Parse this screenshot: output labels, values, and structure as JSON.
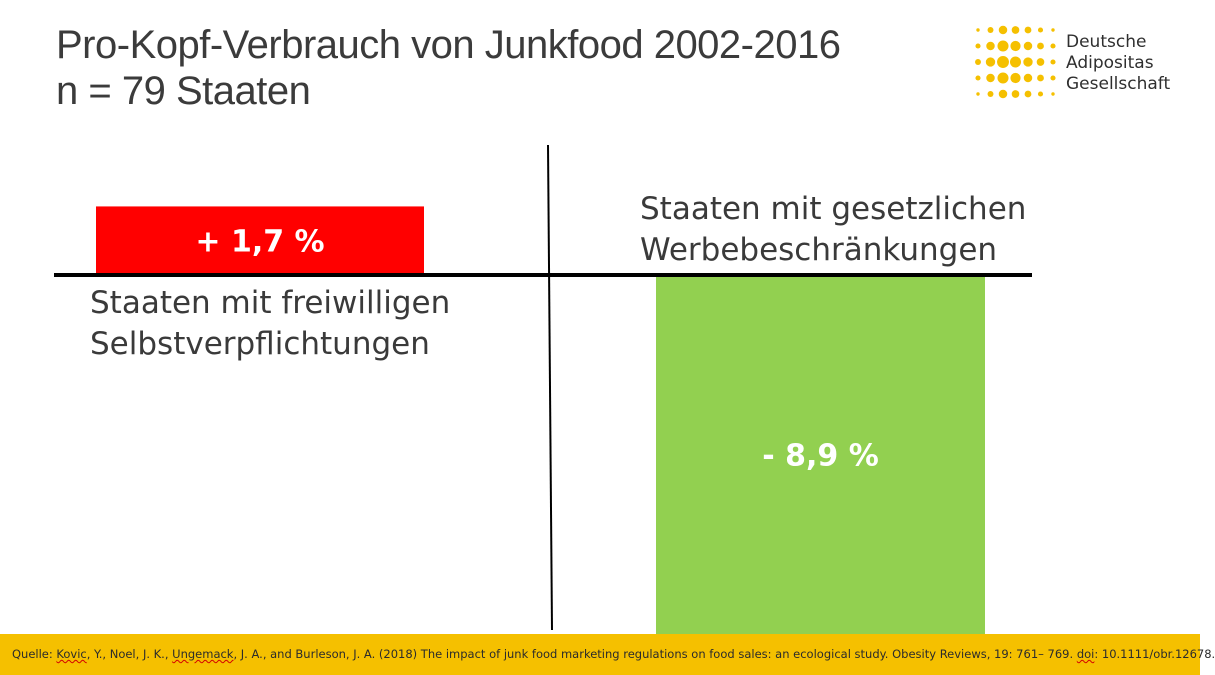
{
  "header": {
    "title_line1": "Pro-Kopf-Verbrauch von Junkfood 2002-2016",
    "title_line2": "n = 79 Staaten"
  },
  "logo": {
    "line1": "Deutsche",
    "line2": "Adipositas",
    "line3": "Gesellschaft",
    "dot_color": "#f5c000"
  },
  "chart_data": {
    "type": "bar",
    "title": "Pro-Kopf-Verbrauch von Junkfood 2002-2016",
    "subtitle": "n = 79 Staaten",
    "categories": [
      [
        "Staaten mit freiwilligen",
        "Selbstverpflichtungen"
      ],
      [
        "Staaten mit gesetzlichen",
        "Werbebeschränkungen"
      ]
    ],
    "values": [
      1.7,
      -8.9
    ],
    "data_labels": [
      "+ 1,7 %",
      "- 8,9 %"
    ],
    "colors": [
      "#ff0000",
      "#92d050"
    ],
    "unit": "%",
    "ylim": [
      -8.9,
      1.7
    ],
    "grid": false,
    "legend": "none"
  },
  "source": {
    "prefix": "Quelle: ",
    "author1": "Kovic",
    "part2": ", Y., Noel, J. K., ",
    "author3": "Ungemack",
    "part4": ", J. A., and Burleson, J. A. (2018) The impact of junk food marketing regulations on food sales: an ecological study. Obesity Reviews, 19: 761– 769. ",
    "doi_label": "doi",
    "doi_value": ": 10.1111/obr.12678."
  }
}
